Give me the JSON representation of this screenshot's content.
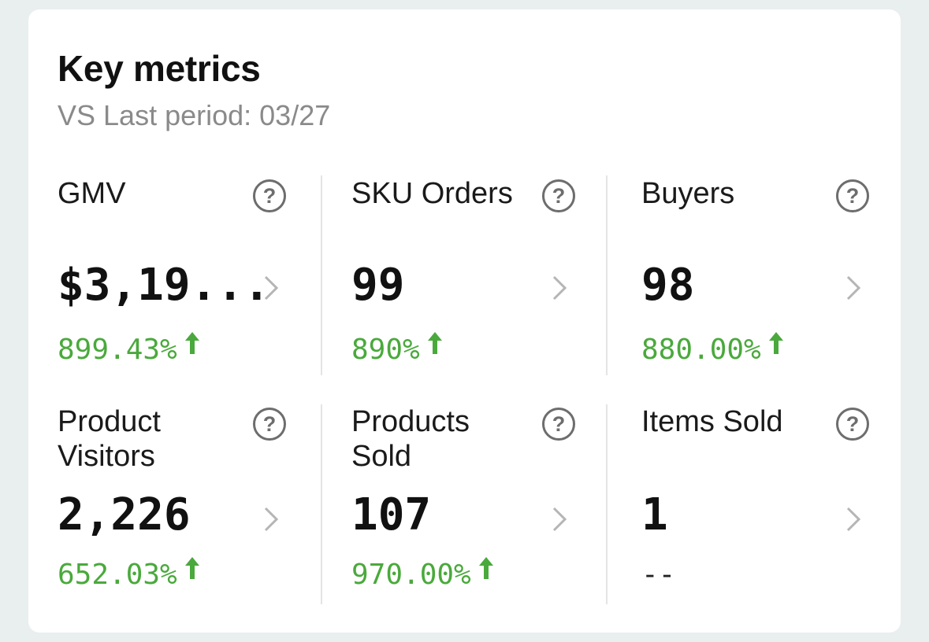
{
  "card": {
    "title": "Key metrics",
    "subtitle": "VS Last period: 03/27"
  },
  "metrics": [
    {
      "label": "GMV",
      "value": "$3,19...",
      "change": "899.43%",
      "trend": "up"
    },
    {
      "label": "SKU Orders",
      "value": "99",
      "change": "890%",
      "trend": "up"
    },
    {
      "label": "Buyers",
      "value": "98",
      "change": "880.00%",
      "trend": "up"
    },
    {
      "label": "Product Visitors",
      "value": "2,226",
      "change": "652.03%",
      "trend": "up"
    },
    {
      "label": "Products Sold",
      "value": "107",
      "change": "970.00%",
      "trend": "up"
    },
    {
      "label": "Items Sold",
      "value": "1",
      "change": "--",
      "trend": "none"
    }
  ],
  "icons": {
    "help": "question-circle-icon",
    "chevron": "chevron-right-icon",
    "trend_up": "arrow-up-icon"
  },
  "colors": {
    "positive": "#4aa93c",
    "card_bg": "#ffffff",
    "page_bg": "#e9eeee"
  }
}
